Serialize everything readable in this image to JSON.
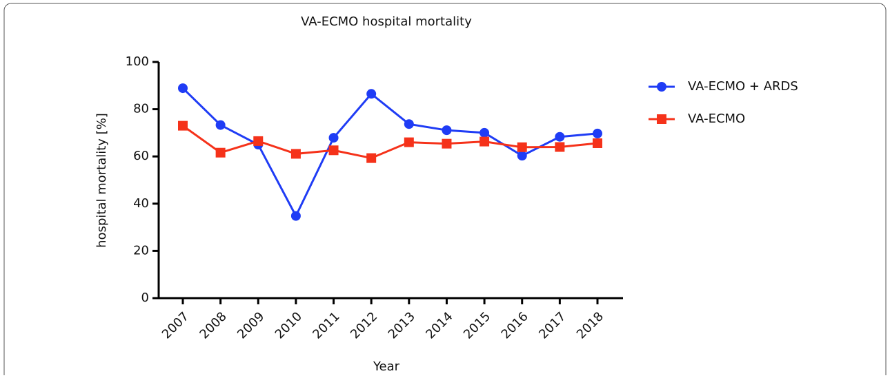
{
  "chart_data": {
    "type": "line",
    "title": "VA-ECMO hospital mortality",
    "xlabel": "Year",
    "ylabel": "hospital mortality [%]",
    "categories": [
      "2007",
      "2008",
      "2009",
      "2010",
      "2011",
      "2012",
      "2013",
      "2014",
      "2015",
      "2016",
      "2017",
      "2018"
    ],
    "series": [
      {
        "name": "VA-ECMO + ARDS",
        "color": "#1f3cf5",
        "marker": "circle",
        "values": [
          88.9,
          73.3,
          65,
          34.8,
          67.9,
          86.5,
          73.7,
          71.1,
          70,
          60.3,
          68.3,
          69.7
        ]
      },
      {
        "name": "VA-ECMO",
        "color": "#f5321a",
        "marker": "square",
        "values": [
          73,
          61.6,
          66.5,
          61.1,
          62.6,
          59.3,
          66,
          65.4,
          66.3,
          63.9,
          64,
          65.6
        ]
      }
    ],
    "ylim": [
      0,
      100
    ],
    "yticks": [
      0,
      20,
      40,
      60,
      80,
      100
    ],
    "legend": "right"
  }
}
